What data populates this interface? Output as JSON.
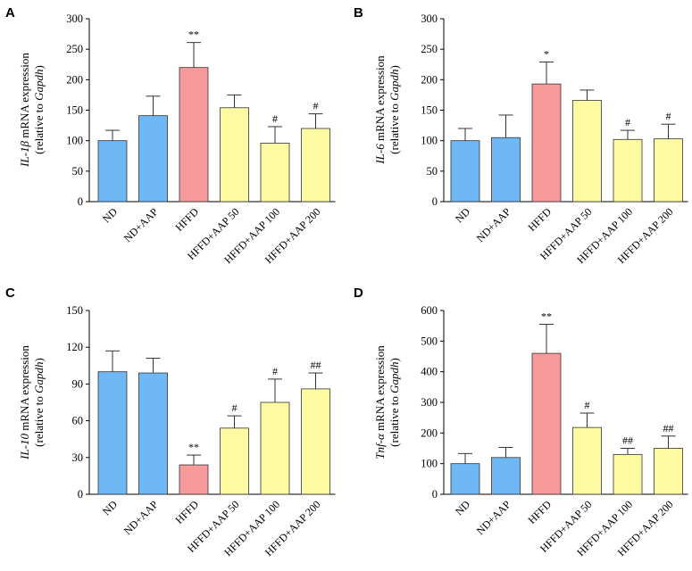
{
  "colors": {
    "ND": "#6fb8f5",
    "HFFD": "#f79a9c",
    "AAP": "#fdfaa2"
  },
  "chart_data": [
    {
      "type": "bar",
      "panel": "A",
      "ylabel_gene": "IL-1β",
      "ylabel_rest": " mRNA expression",
      "ylabel_line2_pre": "(relative to ",
      "ylabel_line2_gene": "Gapdh",
      "ylabel_line2_post": ")",
      "ylim": [
        0,
        300
      ],
      "yticks": [
        0,
        50,
        100,
        150,
        200,
        250,
        300
      ],
      "categories": [
        "ND",
        "ND+AAP",
        "HFFD",
        "HFFD+AAP 50",
        "HFFD+AAP 100",
        "HFFD+AAP 200"
      ],
      "values": [
        100,
        141,
        220,
        154,
        96,
        120
      ],
      "errors": [
        17,
        32,
        41,
        21,
        27,
        24
      ],
      "annotations": [
        "",
        "",
        "**",
        "",
        "#",
        "#"
      ],
      "groups": [
        "ND",
        "ND",
        "HFFD",
        "AAP",
        "AAP",
        "AAP"
      ]
    },
    {
      "type": "bar",
      "panel": "B",
      "ylabel_gene": "IL-6",
      "ylabel_rest": " mRNA expression",
      "ylabel_line2_pre": "(relative to ",
      "ylabel_line2_gene": "Gapdh",
      "ylabel_line2_post": ")",
      "ylim": [
        0,
        300
      ],
      "yticks": [
        0,
        50,
        100,
        150,
        200,
        250,
        300
      ],
      "categories": [
        "ND",
        "ND+AAP",
        "HFFD",
        "HFFD+AAP 50",
        "HFFD+AAP 100",
        "HFFD+AAP 200"
      ],
      "values": [
        100,
        105,
        193,
        166,
        102,
        103
      ],
      "errors": [
        20,
        37,
        36,
        17,
        15,
        24
      ],
      "annotations": [
        "",
        "",
        "*",
        "",
        "#",
        "#"
      ],
      "groups": [
        "ND",
        "ND",
        "HFFD",
        "AAP",
        "AAP",
        "AAP"
      ]
    },
    {
      "type": "bar",
      "panel": "C",
      "ylabel_gene": "IL-10",
      "ylabel_rest": " mRNA expression",
      "ylabel_line2_pre": "(relative to ",
      "ylabel_line2_gene": "Gapdh",
      "ylabel_line2_post": ")",
      "ylim": [
        0,
        150
      ],
      "yticks": [
        0,
        30,
        60,
        90,
        120,
        150
      ],
      "categories": [
        "ND",
        "ND+AAP",
        "HFFD",
        "HFFD+AAP 50",
        "HFFD+AAP 100",
        "HFFD+AAP 200"
      ],
      "values": [
        100,
        99,
        24,
        54,
        75,
        86
      ],
      "errors": [
        17,
        12,
        8,
        10,
        19,
        13
      ],
      "annotations": [
        "",
        "",
        "**",
        "#",
        "#",
        "##"
      ],
      "groups": [
        "ND",
        "ND",
        "HFFD",
        "AAP",
        "AAP",
        "AAP"
      ]
    },
    {
      "type": "bar",
      "panel": "D",
      "ylabel_gene": "Tnf-α",
      "ylabel_rest": " mRNA expression",
      "ylabel_line2_pre": "(relative to ",
      "ylabel_line2_gene": "Gapdh",
      "ylabel_line2_post": ")",
      "ylim": [
        0,
        600
      ],
      "yticks": [
        0,
        100,
        200,
        300,
        400,
        500,
        600
      ],
      "categories": [
        "ND",
        "ND+AAP",
        "HFFD",
        "HFFD+AAP 50",
        "HFFD+AAP 100",
        "HFFD+AAP 200"
      ],
      "values": [
        100,
        120,
        460,
        218,
        130,
        150
      ],
      "errors": [
        33,
        33,
        95,
        47,
        20,
        40
      ],
      "annotations": [
        "",
        "",
        "**",
        "#",
        "##",
        "##"
      ],
      "groups": [
        "ND",
        "ND",
        "HFFD",
        "AAP",
        "AAP",
        "AAP"
      ]
    }
  ]
}
